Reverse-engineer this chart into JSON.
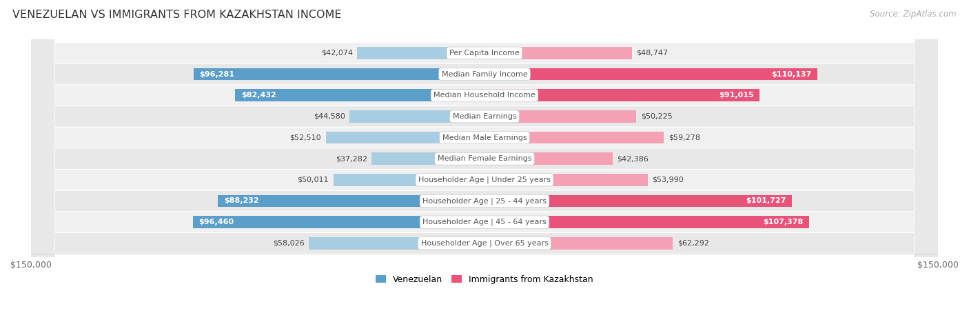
{
  "title": "VENEZUELAN VS IMMIGRANTS FROM KAZAKHSTAN INCOME",
  "source": "Source: ZipAtlas.com",
  "categories": [
    "Per Capita Income",
    "Median Family Income",
    "Median Household Income",
    "Median Earnings",
    "Median Male Earnings",
    "Median Female Earnings",
    "Householder Age | Under 25 years",
    "Householder Age | 25 - 44 years",
    "Householder Age | 45 - 64 years",
    "Householder Age | Over 65 years"
  ],
  "venezuelan_values": [
    42074,
    96281,
    82432,
    44580,
    52510,
    37282,
    50011,
    88232,
    96460,
    58026
  ],
  "kazakhstan_values": [
    48747,
    110137,
    91015,
    50225,
    59278,
    42386,
    53990,
    101727,
    107378,
    62292
  ],
  "venezuelan_labels": [
    "$42,074",
    "$96,281",
    "$82,432",
    "$44,580",
    "$52,510",
    "$37,282",
    "$50,011",
    "$88,232",
    "$96,460",
    "$58,026"
  ],
  "kazakhstan_labels": [
    "$48,747",
    "$110,137",
    "$91,015",
    "$50,225",
    "$59,278",
    "$42,386",
    "$53,990",
    "$101,727",
    "$107,378",
    "$62,292"
  ],
  "max_value": 150000,
  "venezuelan_color_light": "#a8cce0",
  "venezuelan_color_dark": "#5b9ec9",
  "kazakhstan_color_light": "#f4a0b5",
  "kazakhstan_color_dark": "#e8537a",
  "background_color": "#ffffff",
  "row_bg_even": "#f0f0f0",
  "row_bg_odd": "#e8e8e8",
  "bar_height": 0.58,
  "inside_label_threshold": 65000,
  "legend_venezuelan": "Venezuelan",
  "legend_kazakhstan": "Immigrants from Kazakhstan"
}
